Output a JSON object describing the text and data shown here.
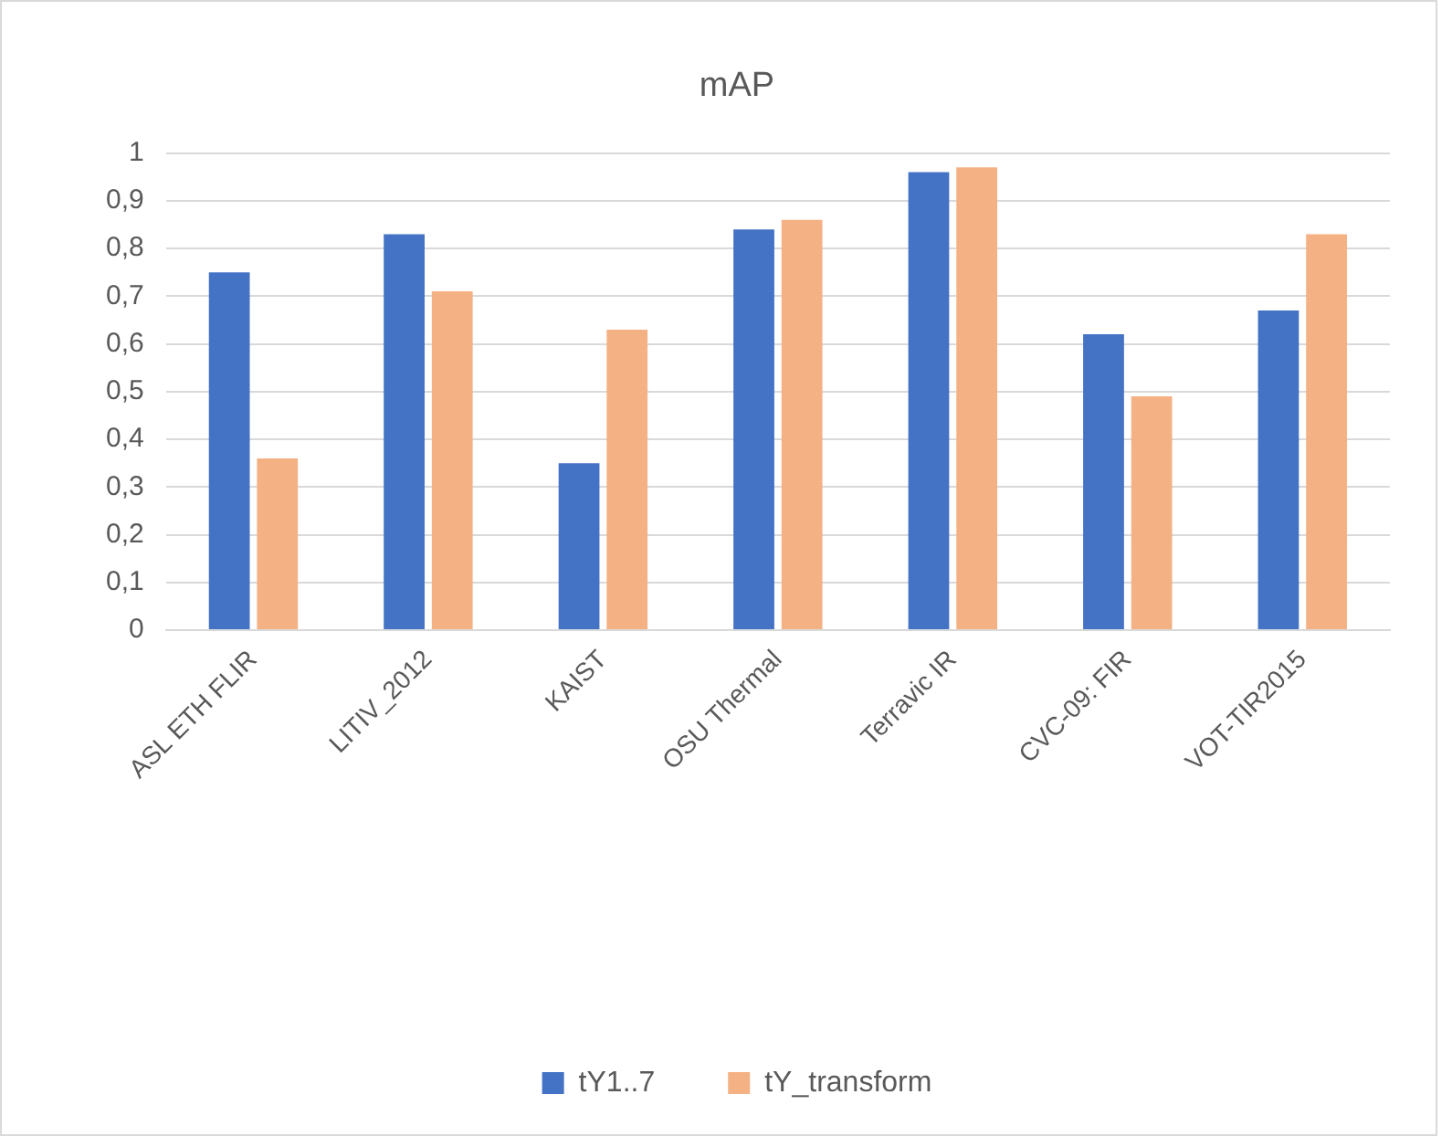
{
  "chart_data": {
    "type": "bar",
    "title": "mAP",
    "categories": [
      "ASL ETH FLIR",
      "LITIV_2012",
      "KAIST",
      "OSU Thermal",
      "Terravic IR",
      "CVC-09: FIR",
      "VOT-TIR2015"
    ],
    "series": [
      {
        "name": "tY1..7",
        "color": "#4472c4",
        "values": [
          0.75,
          0.83,
          0.35,
          0.84,
          0.96,
          0.62,
          0.67
        ]
      },
      {
        "name": "tY_transform",
        "color": "#f4b183",
        "values": [
          0.36,
          0.71,
          0.63,
          0.86,
          0.97,
          0.49,
          0.83
        ]
      }
    ],
    "ylim": [
      0,
      1
    ],
    "yticks": [
      {
        "value": 0,
        "label": "0"
      },
      {
        "value": 0.1,
        "label": "0,1"
      },
      {
        "value": 0.2,
        "label": "0,2"
      },
      {
        "value": 0.3,
        "label": "0,3"
      },
      {
        "value": 0.4,
        "label": "0,4"
      },
      {
        "value": 0.5,
        "label": "0,5"
      },
      {
        "value": 0.6,
        "label": "0,6"
      },
      {
        "value": 0.7,
        "label": "0,7"
      },
      {
        "value": 0.8,
        "label": "0,8"
      },
      {
        "value": 0.9,
        "label": "0,9"
      },
      {
        "value": 1,
        "label": "1"
      }
    ],
    "grid": "y",
    "legend": "bottom"
  }
}
